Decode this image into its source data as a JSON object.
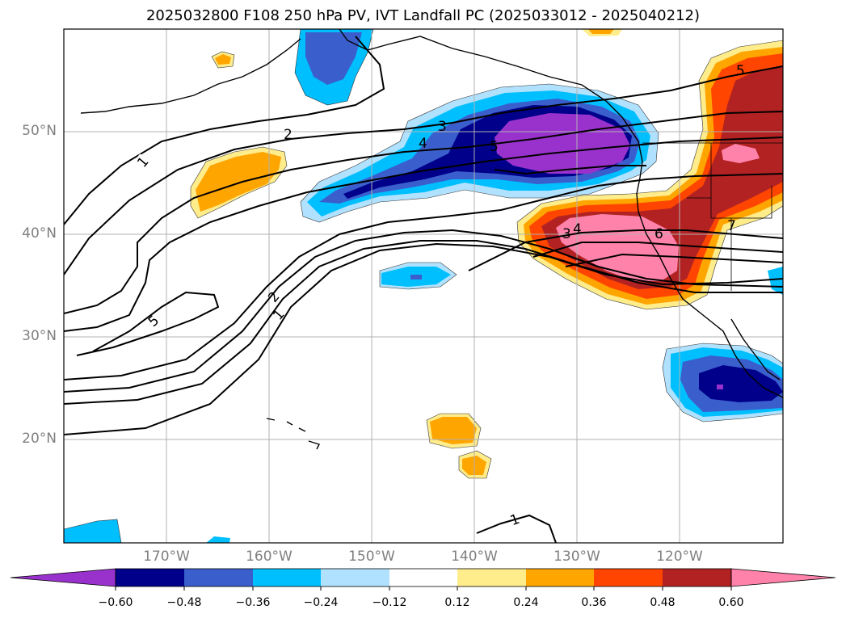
{
  "title": "2025032800 F108 250 hPa PV, IVT Landfall PC (2025033012 - 2025040212)",
  "map": {
    "projection": "PlateCarree",
    "extent": {
      "lon_min": -180,
      "lon_max": -110,
      "lat_min": 10,
      "lat_max": 60
    },
    "gridlines": true,
    "lat_labels": [
      "50°N",
      "40°N",
      "30°N",
      "20°N"
    ],
    "lon_labels": [
      "170°W",
      "160°W",
      "150°W",
      "140°W",
      "130°W",
      "120°W"
    ],
    "contour_labels": [
      "1",
      "2",
      "3",
      "4",
      "5",
      "3",
      "4",
      "5",
      "6",
      "7",
      "5",
      "2",
      "1",
      "1"
    ]
  },
  "colorbar": {
    "extend": "both",
    "tick_labels": [
      "−0.60",
      "−0.48",
      "−0.36",
      "−0.24",
      "−0.12",
      "0.12",
      "0.24",
      "0.36",
      "0.48",
      "0.60"
    ],
    "colors": [
      "#9932cc",
      "#00008b",
      "#3a5fcd",
      "#00bfff",
      "#b0e2ff",
      "#ffffff",
      "#ffec8b",
      "#ffa500",
      "#ff4500",
      "#b22222",
      "#ff82ab"
    ]
  }
}
